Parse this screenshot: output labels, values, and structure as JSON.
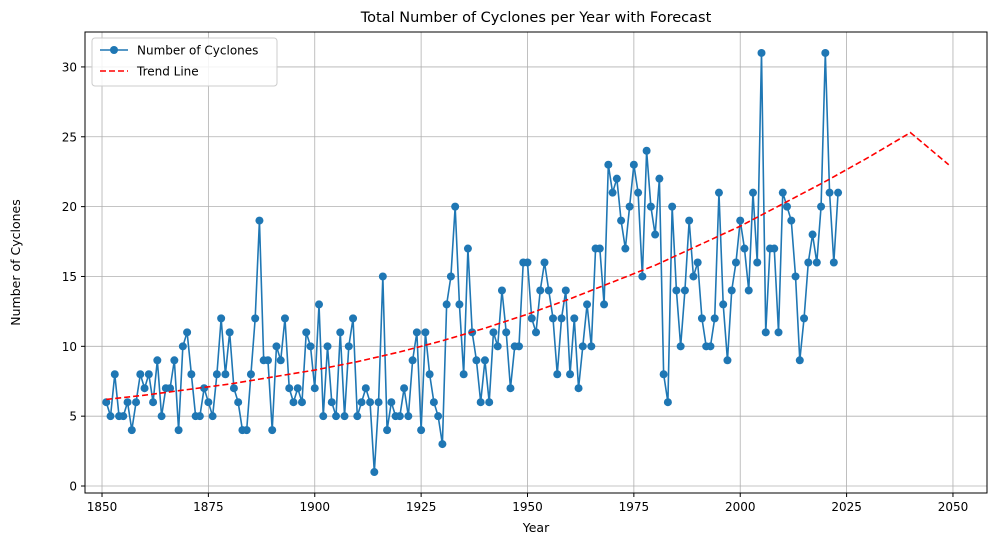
{
  "chart_data": {
    "type": "line",
    "title": "Total Number of Cyclones per Year with Forecast",
    "xlabel": "Year",
    "ylabel": "Number of Cyclones",
    "xlim": [
      1846,
      2058
    ],
    "ylim": [
      -0.5,
      32.5
    ],
    "xticks": [
      1850,
      1875,
      1900,
      1925,
      1950,
      1975,
      2000,
      2025,
      2050
    ],
    "yticks": [
      0,
      5,
      10,
      15,
      20,
      25,
      30
    ],
    "grid": true,
    "legend_position": "top-left",
    "series": [
      {
        "name": "Number of Cyclones",
        "style": "line-marker",
        "color": "#1f77b4",
        "x": [
          1851,
          1852,
          1853,
          1854,
          1855,
          1856,
          1857,
          1858,
          1859,
          1860,
          1861,
          1862,
          1863,
          1864,
          1865,
          1866,
          1867,
          1868,
          1869,
          1870,
          1871,
          1872,
          1873,
          1874,
          1875,
          1876,
          1877,
          1878,
          1879,
          1880,
          1881,
          1882,
          1883,
          1884,
          1885,
          1886,
          1887,
          1888,
          1889,
          1890,
          1891,
          1892,
          1893,
          1894,
          1895,
          1896,
          1897,
          1898,
          1899,
          1900,
          1901,
          1902,
          1903,
          1904,
          1905,
          1906,
          1907,
          1908,
          1909,
          1910,
          1911,
          1912,
          1913,
          1914,
          1915,
          1916,
          1917,
          1918,
          1919,
          1920,
          1921,
          1922,
          1923,
          1924,
          1925,
          1926,
          1927,
          1928,
          1929,
          1930,
          1931,
          1932,
          1933,
          1934,
          1935,
          1936,
          1937,
          1938,
          1939,
          1940,
          1941,
          1942,
          1943,
          1944,
          1945,
          1946,
          1947,
          1948,
          1949,
          1950,
          1951,
          1952,
          1953,
          1954,
          1955,
          1956,
          1957,
          1958,
          1959,
          1960,
          1961,
          1962,
          1963,
          1964,
          1965,
          1966,
          1967,
          1968,
          1969,
          1970,
          1971,
          1972,
          1973,
          1974,
          1975,
          1976,
          1977,
          1978,
          1979,
          1980,
          1981,
          1982,
          1983,
          1984,
          1985,
          1986,
          1987,
          1988,
          1989,
          1990,
          1991,
          1992,
          1993,
          1994,
          1995,
          1996,
          1997,
          1998,
          1999,
          2000,
          2001,
          2002,
          2003,
          2004,
          2005,
          2006,
          2007,
          2008,
          2009,
          2010,
          2011,
          2012,
          2013,
          2014,
          2015,
          2016,
          2017,
          2018,
          2019,
          2020,
          2021,
          2022,
          2023
        ],
        "y": [
          6,
          5,
          8,
          5,
          5,
          6,
          4,
          6,
          8,
          7,
          8,
          6,
          9,
          5,
          7,
          7,
          9,
          4,
          10,
          11,
          8,
          5,
          5,
          7,
          6,
          5,
          8,
          12,
          8,
          11,
          7,
          6,
          4,
          4,
          8,
          12,
          19,
          9,
          9,
          4,
          10,
          9,
          12,
          7,
          6,
          7,
          6,
          11,
          10,
          7,
          13,
          5,
          10,
          6,
          5,
          11,
          5,
          10,
          12,
          5,
          6,
          7,
          6,
          1,
          6,
          15,
          4,
          6,
          5,
          5,
          7,
          5,
          9,
          11,
          4,
          11,
          8,
          6,
          5,
          3,
          13,
          15,
          20,
          13,
          8,
          17,
          11,
          9,
          6,
          9,
          6,
          11,
          10,
          14,
          11,
          7,
          10,
          10,
          16,
          16,
          12,
          11,
          14,
          16,
          14,
          12,
          8,
          12,
          14,
          8,
          12,
          7,
          10,
          13,
          10,
          17,
          17,
          13,
          23,
          21,
          22,
          19,
          17,
          20,
          23,
          21,
          15,
          24,
          20,
          18,
          22,
          8,
          6,
          20,
          14,
          10,
          14,
          19,
          15,
          16,
          12,
          10,
          10,
          12,
          21,
          13,
          9,
          14,
          16,
          19,
          17,
          14,
          21,
          16,
          31,
          11,
          17,
          17,
          11,
          21,
          20,
          19,
          15,
          9,
          12,
          16,
          18,
          16,
          20,
          31,
          21,
          16,
          21
        ]
      },
      {
        "name": "Trend Line",
        "style": "dashed",
        "color": "#ff0000",
        "x": [
          1851,
          1860,
          1870,
          1880,
          1890,
          1900,
          1910,
          1920,
          1930,
          1940,
          1950,
          1960,
          1970,
          1980,
          1990,
          2000,
          2010,
          2020,
          2030,
          2040,
          2049
        ],
        "y": [
          6.2,
          6.5,
          6.9,
          7.3,
          7.8,
          8.3,
          8.9,
          9.6,
          10.4,
          11.3,
          12.3,
          13.4,
          14.6,
          15.8,
          17.2,
          18.6,
          20.2,
          21.8,
          23.5,
          25.3,
          23.0
        ]
      }
    ]
  }
}
